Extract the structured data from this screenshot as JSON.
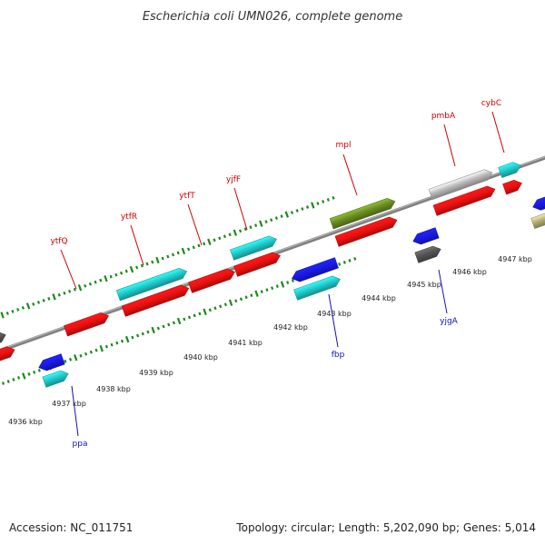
{
  "title": "Escherichia coli UMN026, complete genome",
  "footer": {
    "accession": "Accession: NC_011751",
    "summary": "Topology: circular; Length: 5,202,090 bp; Genes: 5,014"
  },
  "colors": {
    "background": "#ffffff",
    "backbone": "#808080",
    "tick_dots": "#1a8a1a",
    "label_top": "#d00000",
    "label_bottom": "#1010c0",
    "red": "#ee1111",
    "cyan": "#22cccc",
    "blue": "#1a1ae6",
    "olive": "#6b8e23",
    "gray_dark": "#555555",
    "gray_light": "#bbbbbb",
    "khaki": "#b5b07a"
  },
  "tick_labels": [
    "4936 kbp",
    "4937 kbp",
    "4938 kbp",
    "4939 kbp",
    "4940 kbp",
    "4941 kbp",
    "4942 kbp",
    "4943 kbp",
    "4944 kbp",
    "4945 kbp",
    "4946 kbp",
    "4947 kbp"
  ],
  "gene_labels": [
    {
      "name": "ytfQ",
      "side": "top"
    },
    {
      "name": "ytfR",
      "side": "top"
    },
    {
      "name": "ytfT",
      "side": "top"
    },
    {
      "name": "yjfF",
      "side": "top"
    },
    {
      "name": "mpl",
      "side": "top"
    },
    {
      "name": "pmbA",
      "side": "top"
    },
    {
      "name": "cybC",
      "side": "top"
    },
    {
      "name": "ppa",
      "side": "bottom"
    },
    {
      "name": "fbp",
      "side": "bottom"
    },
    {
      "name": "yjgA",
      "side": "bottom"
    }
  ]
}
